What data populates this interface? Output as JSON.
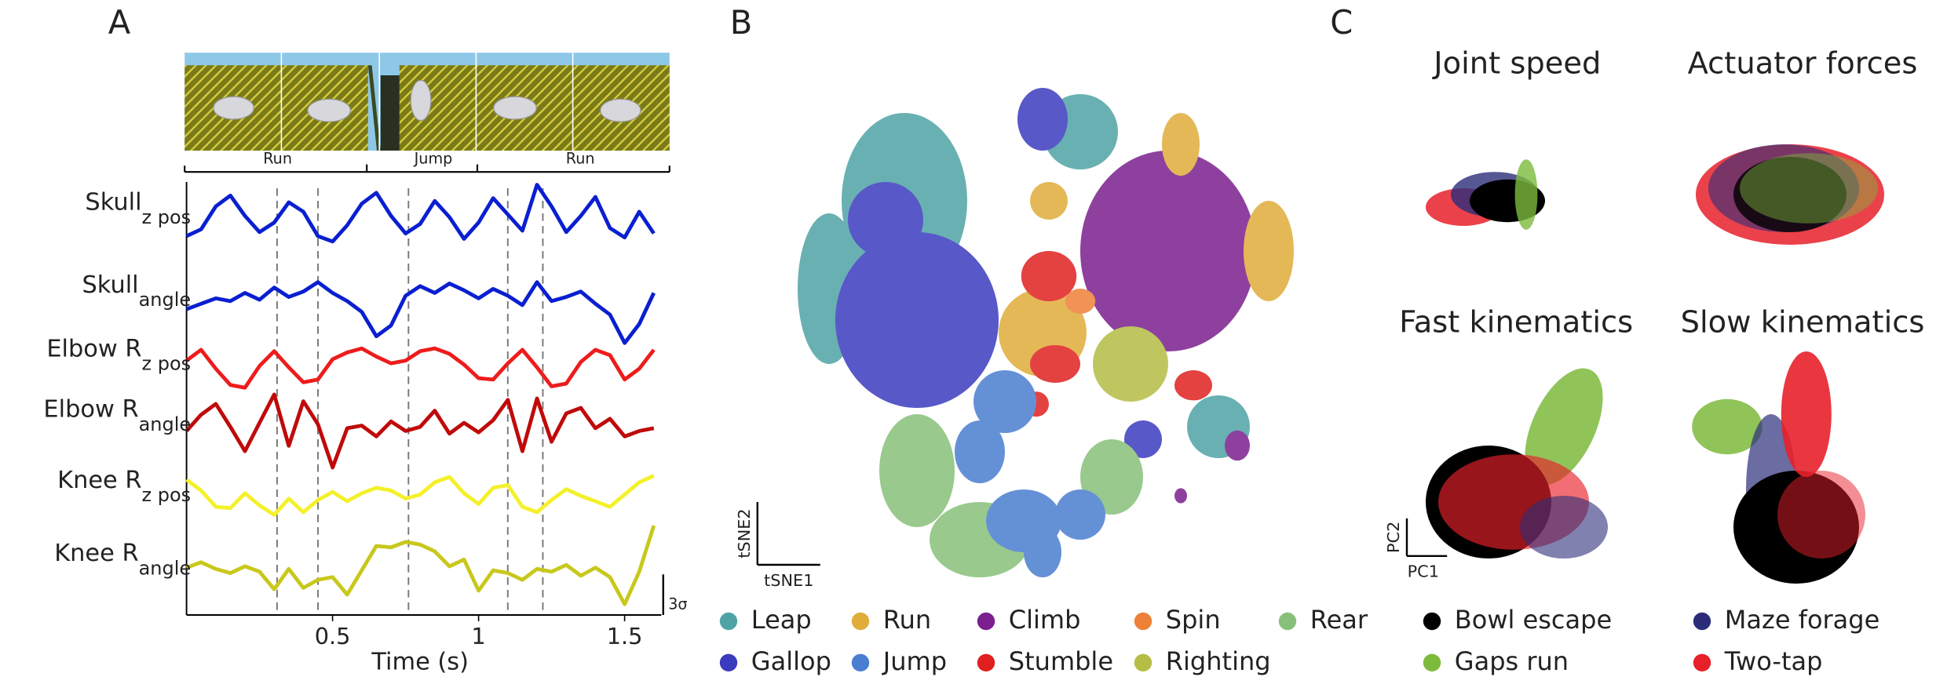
{
  "chart_data": [
    {
      "type": "line",
      "label": "A",
      "strip_labels": [
        "Run",
        "Jump",
        "Run"
      ],
      "x_label": "Time (s)",
      "x": [
        0,
        0.05,
        0.1,
        0.15,
        0.2,
        0.25,
        0.3,
        0.35,
        0.4,
        0.45,
        0.5,
        0.55,
        0.6,
        0.65,
        0.7,
        0.75,
        0.8,
        0.85,
        0.9,
        0.95,
        1,
        1.05,
        1.1,
        1.15,
        1.2,
        1.25,
        1.3,
        1.35,
        1.4,
        1.45,
        1.5,
        1.55,
        1.6
      ],
      "xlim": [
        0,
        1.6
      ],
      "xticks": [
        0.5,
        1,
        1.5
      ],
      "ylim": [
        0,
        32
      ],
      "events": [
        0.31,
        0.45,
        0.76,
        1.1,
        1.22
      ],
      "scalebar": {
        "value": 3,
        "label": "3σ"
      },
      "series": [
        {
          "name": "Skull",
          "sub": "z pos",
          "color": "#0a1fd0",
          "values": [
            28,
            28.5,
            30.2,
            31,
            29.5,
            28.3,
            29,
            30.5,
            29.8,
            28,
            27.6,
            28.8,
            30.4,
            31.2,
            29.5,
            28.2,
            28.9,
            30.6,
            29.4,
            27.8,
            29,
            30.8,
            29.6,
            28.4,
            31.8,
            30.2,
            28.3,
            29.5,
            30.9,
            28.6,
            27.9,
            29.8,
            28.2
          ]
        },
        {
          "name": "Skull",
          "sub": "angle",
          "color": "#0a1fd0",
          "values": [
            22.6,
            23,
            23.4,
            23.2,
            23.8,
            23.3,
            24.2,
            23.5,
            23.9,
            24.6,
            23.8,
            23.2,
            22.4,
            20.6,
            21.4,
            23.6,
            24.3,
            23.8,
            24.5,
            24,
            23.4,
            24.1,
            23.6,
            22.9,
            24.6,
            23.2,
            23.5,
            23.9,
            23,
            22.2,
            20.1,
            21.5,
            23.8
          ]
        },
        {
          "name": "Elbow R",
          "sub": "z pos",
          "color": "#ee1c1c",
          "values": [
            18.8,
            19.6,
            18.2,
            17,
            16.8,
            18.4,
            19.5,
            18.3,
            17.2,
            17.4,
            18.9,
            19.4,
            19.7,
            19.1,
            18.6,
            18.8,
            19.5,
            19.7,
            19.3,
            18.5,
            17.5,
            17.4,
            18.6,
            19.6,
            18.3,
            16.9,
            17.1,
            18.7,
            19.6,
            19.2,
            17.4,
            18.2,
            19.6
          ]
        },
        {
          "name": "Elbow R",
          "sub": "angle",
          "color": "#c00a0a",
          "values": [
            13.6,
            14.8,
            15.6,
            13.9,
            12.1,
            14.2,
            16.3,
            12.5,
            15.8,
            14.1,
            10.9,
            13.8,
            14,
            13.2,
            14.3,
            13.6,
            13.9,
            15.1,
            13.4,
            14.2,
            13.5,
            14.4,
            15.9,
            12.1,
            16,
            12.8,
            14.9,
            15.3,
            13.8,
            14.5,
            13.2,
            13.6,
            13.8
          ]
        },
        {
          "name": "Knee R",
          "sub": "z pos",
          "color": "#f4f02a",
          "values": [
            10,
            9.2,
            8,
            7.9,
            9,
            8.1,
            7.4,
            8.6,
            7.6,
            8.5,
            9.1,
            8.4,
            9,
            9.4,
            9.2,
            8.6,
            8.9,
            9.8,
            10.2,
            9,
            8.2,
            9.4,
            9.6,
            8,
            7.6,
            8.5,
            9.3,
            8.8,
            8.4,
            8,
            8.9,
            9.8,
            10.3
          ]
        },
        {
          "name": "Knee R",
          "sub": "angle",
          "color": "#c8c81c",
          "values": [
            3.5,
            3.9,
            3.4,
            3.1,
            3.6,
            3.2,
            1.9,
            3.4,
            2,
            2.6,
            2.8,
            1.5,
            3.3,
            5.1,
            5,
            5.4,
            5.2,
            4.7,
            3.6,
            4.1,
            1.8,
            3.3,
            3.1,
            2.6,
            3.4,
            3.2,
            3.7,
            2.9,
            3.5,
            2.8,
            0.8,
            3.2,
            6.6
          ]
        }
      ]
    },
    {
      "type": "scatter",
      "label": "B",
      "x_label": "tSNE1",
      "y_label": "tSNE2",
      "series": [
        {
          "name": "Leap",
          "color": "#4fa3a5"
        },
        {
          "name": "Run",
          "color": "#e0ac3a"
        },
        {
          "name": "Climb",
          "color": "#7b1f8e"
        },
        {
          "name": "Spin",
          "color": "#ee8137"
        },
        {
          "name": "Rear",
          "color": "#88c07a"
        },
        {
          "name": "Gallop",
          "color": "#3b3bbf"
        },
        {
          "name": "Jump",
          "color": "#4a7ed0"
        },
        {
          "name": "Stumble",
          "color": "#e02020"
        },
        {
          "name": "Righting",
          "color": "#b5bd45"
        }
      ]
    },
    {
      "type": "scatter",
      "label": "C",
      "x_label": "PC1",
      "y_label": "PC2",
      "panels": [
        {
          "title": "Joint speed"
        },
        {
          "title": "Actuator forces"
        },
        {
          "title": "Fast kinematics"
        },
        {
          "title": "Slow kinematics"
        }
      ],
      "series": [
        {
          "name": "Bowl escape",
          "color": "#000000"
        },
        {
          "name": "Maze forage",
          "color": "#2b2d7a"
        },
        {
          "name": "Gaps run",
          "color": "#7cba3c"
        },
        {
          "name": "Two-tap",
          "color": "#e8202a"
        }
      ]
    }
  ]
}
